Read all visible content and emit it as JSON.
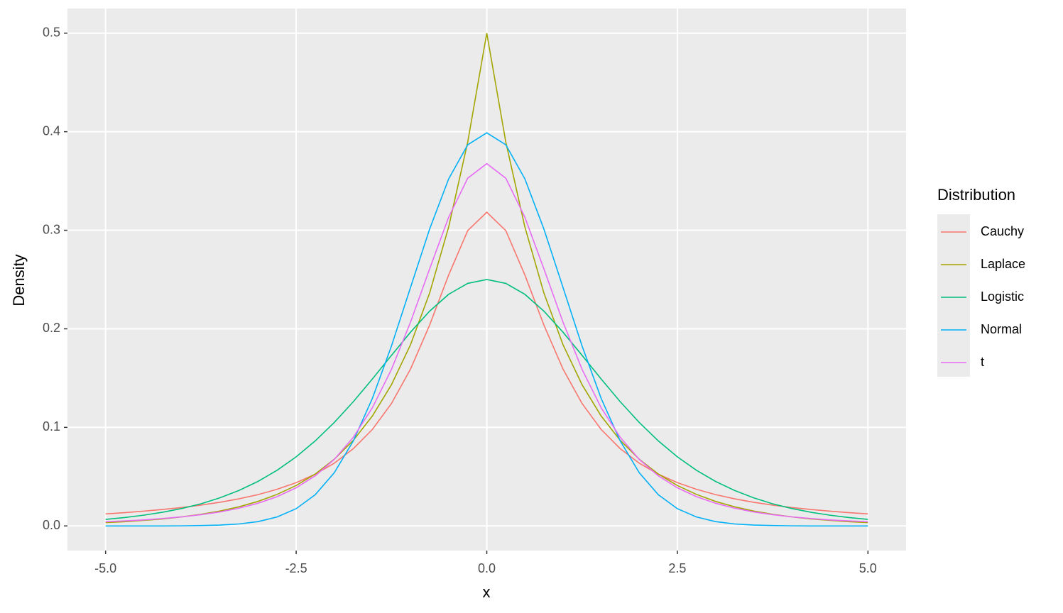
{
  "chart_data": {
    "type": "line",
    "x_label": "x",
    "y_label": "Density",
    "legend_title": "Distribution",
    "legend_position": "right",
    "grid": true,
    "x": [
      -5,
      -4.75,
      -4.5,
      -4.25,
      -4,
      -3.75,
      -3.5,
      -3.25,
      -3,
      -2.75,
      -2.5,
      -2.25,
      -2,
      -1.75,
      -1.5,
      -1.25,
      -1,
      -0.75,
      -0.5,
      -0.25,
      0,
      0.25,
      0.5,
      0.75,
      1,
      1.25,
      1.5,
      1.75,
      2,
      2.25,
      2.5,
      2.75,
      3,
      3.25,
      3.5,
      3.75,
      4,
      4.25,
      4.5,
      4.75,
      5
    ],
    "series": [
      {
        "name": "Cauchy",
        "color": "#F8766D",
        "values": [
          0.0122,
          0.0135,
          0.015,
          0.0167,
          0.0187,
          0.0211,
          0.024,
          0.0275,
          0.0318,
          0.0372,
          0.0439,
          0.0525,
          0.0637,
          0.0784,
          0.0979,
          0.1242,
          0.1592,
          0.2037,
          0.2546,
          0.2996,
          0.3183,
          0.2996,
          0.2546,
          0.2037,
          0.1592,
          0.1242,
          0.0979,
          0.0784,
          0.0637,
          0.0525,
          0.0439,
          0.0372,
          0.0318,
          0.0275,
          0.024,
          0.0211,
          0.0187,
          0.0167,
          0.015,
          0.0135,
          0.0122
        ]
      },
      {
        "name": "Laplace",
        "color": "#A3A500",
        "values": [
          0.0034,
          0.0043,
          0.0056,
          0.0071,
          0.0092,
          0.0118,
          0.0151,
          0.0194,
          0.0249,
          0.032,
          0.041,
          0.0527,
          0.0677,
          0.0869,
          0.1116,
          0.1433,
          0.1839,
          0.2362,
          0.3033,
          0.3894,
          0.5,
          0.3894,
          0.3033,
          0.2362,
          0.1839,
          0.1433,
          0.1116,
          0.0869,
          0.0677,
          0.0527,
          0.041,
          0.032,
          0.0249,
          0.0194,
          0.0151,
          0.0118,
          0.0092,
          0.0071,
          0.0056,
          0.0043,
          0.0034
        ]
      },
      {
        "name": "Logistic",
        "color": "#00BF7D",
        "values": [
          0.0066,
          0.0085,
          0.0109,
          0.0139,
          0.0177,
          0.0224,
          0.0285,
          0.036,
          0.0452,
          0.0565,
          0.0701,
          0.0863,
          0.105,
          0.1261,
          0.1491,
          0.1731,
          0.1966,
          0.2179,
          0.235,
          0.2461,
          0.25,
          0.2461,
          0.235,
          0.2179,
          0.1966,
          0.1731,
          0.1491,
          0.1261,
          0.105,
          0.0863,
          0.0701,
          0.0565,
          0.0452,
          0.036,
          0.0285,
          0.0224,
          0.0177,
          0.0139,
          0.0109,
          0.0085,
          0.0066
        ]
      },
      {
        "name": "Normal",
        "color": "#00B0F6",
        "values": [
          0,
          0,
          0,
          0,
          0.0001,
          0.0004,
          0.0009,
          0.002,
          0.0044,
          0.0091,
          0.0175,
          0.0317,
          0.054,
          0.0863,
          0.1295,
          0.1826,
          0.242,
          0.3011,
          0.3521,
          0.3867,
          0.3989,
          0.3867,
          0.3521,
          0.3011,
          0.242,
          0.1826,
          0.1295,
          0.0863,
          0.054,
          0.0317,
          0.0175,
          0.0091,
          0.0044,
          0.002,
          0.0009,
          0.0004,
          0.0001,
          0,
          0,
          0,
          0
        ]
      },
      {
        "name": "t",
        "color": "#E76BF3",
        "values": [
          0.0042,
          0.0051,
          0.0061,
          0.0075,
          0.0092,
          0.0114,
          0.0142,
          0.018,
          0.023,
          0.0297,
          0.0387,
          0.0509,
          0.0675,
          0.09,
          0.12,
          0.1589,
          0.2068,
          0.2607,
          0.3132,
          0.3528,
          0.3676,
          0.3528,
          0.3132,
          0.2607,
          0.2068,
          0.1589,
          0.12,
          0.09,
          0.0675,
          0.0509,
          0.0387,
          0.0297,
          0.023,
          0.018,
          0.0142,
          0.0114,
          0.0092,
          0.0075,
          0.0061,
          0.0051,
          0.0042
        ]
      }
    ],
    "xlim": [
      -5.5,
      5.5
    ],
    "xticks": [
      {
        "value": -5,
        "label": "-5.0"
      },
      {
        "value": -2.5,
        "label": "-2.5"
      },
      {
        "value": 0,
        "label": "0.0"
      },
      {
        "value": 2.5,
        "label": "2.5"
      },
      {
        "value": 5,
        "label": "5.0"
      }
    ],
    "ylim": [
      -0.025,
      0.525
    ],
    "yticks": [
      {
        "value": 0,
        "label": "0.0"
      },
      {
        "value": 0.1,
        "label": "0.1"
      },
      {
        "value": 0.2,
        "label": "0.2"
      },
      {
        "value": 0.3,
        "label": "0.3"
      },
      {
        "value": 0.4,
        "label": "0.4"
      },
      {
        "value": 0.5,
        "label": "0.5"
      }
    ]
  }
}
